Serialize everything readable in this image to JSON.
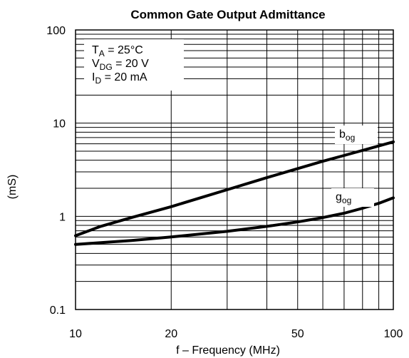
{
  "chart_data": {
    "type": "line",
    "title": "Common Gate Output Admittance",
    "xlabel": "f – Frequency (MHz)",
    "ylabel": "(mS)",
    "xscale": "log",
    "yscale": "log",
    "xlim": [
      10,
      100
    ],
    "ylim": [
      0.1,
      100
    ],
    "x_ticks": [
      "10",
      "20",
      "50",
      "100"
    ],
    "y_ticks": [
      "0.1",
      "1",
      "10",
      "100"
    ],
    "grid": true,
    "conditions": [
      {
        "main": "T",
        "sub": "A",
        "rest": " = 25°C"
      },
      {
        "main": "V",
        "sub": "DG",
        "rest": " = 20 V"
      },
      {
        "main": "I",
        "sub": "D",
        "rest": " = 20 mA"
      }
    ],
    "series": [
      {
        "name_main": "b",
        "name_sub": "og",
        "x": [
          10,
          12,
          15,
          20,
          25,
          30,
          40,
          50,
          60,
          70,
          80,
          100
        ],
        "y": [
          0.62,
          0.78,
          0.97,
          1.27,
          1.6,
          1.93,
          2.6,
          3.25,
          3.9,
          4.5,
          5.1,
          6.3
        ]
      },
      {
        "name_main": "g",
        "name_sub": "og",
        "x": [
          10,
          15,
          20,
          30,
          40,
          50,
          60,
          70,
          80,
          90,
          100
        ],
        "y": [
          0.5,
          0.55,
          0.6,
          0.69,
          0.78,
          0.87,
          0.97,
          1.08,
          1.22,
          1.38,
          1.58
        ]
      }
    ]
  }
}
